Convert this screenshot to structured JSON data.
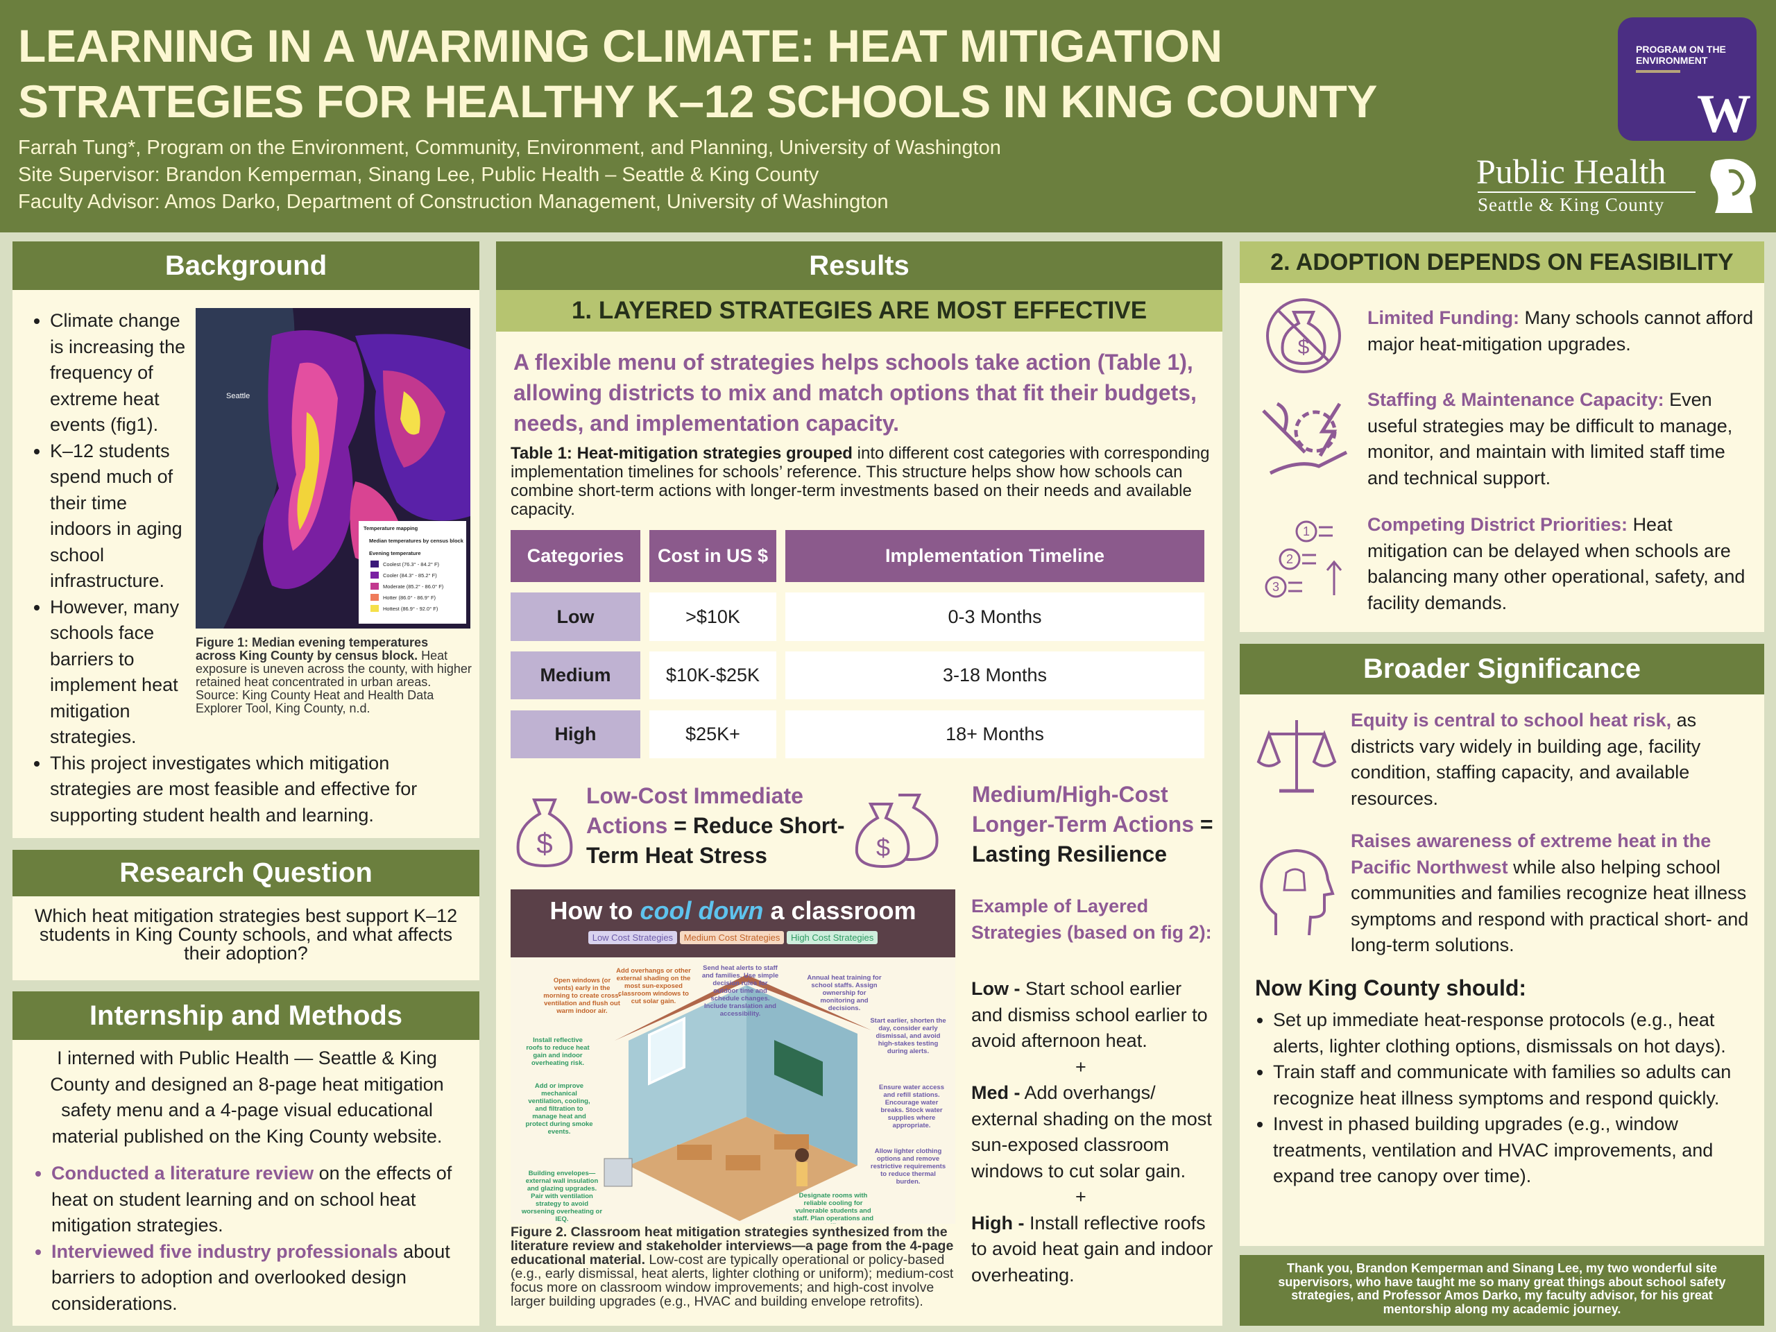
{
  "header": {
    "title_lines": [
      "LEARNING IN A WARMING CLIMATE: HEAT MITIGATION",
      "STRATEGIES FOR HEALTHY K–12 SCHOOLS IN KING COUNTY"
    ],
    "authors": [
      "Farrah Tung*, Program on the Environment, Community, Environment, and Planning, University of Washington",
      "Site Supervisor: Brandon Kemperman, Sinang Lee, Public Health – Seattle & King County",
      "Faculty Advisor: Amos Darko, Department of Construction Management, University of Washington"
    ],
    "program_logo": "PROGRAM ON THE ENVIRONMENT",
    "uw_logo": "W",
    "ph_logo_title": "Public Health",
    "ph_logo_sub": "Seattle & King County"
  },
  "background": {
    "heading": "Background",
    "bullets": [
      "Climate change is increasing the frequency of extreme heat events (fig1).",
      "K–12 students spend much of their time indoors in aging school infrastructure.",
      "However, many schools face barriers to implement heat mitigation strategies.",
      "This project investigates which mitigation strategies are most feasible and effective for supporting student health and learning."
    ],
    "map": {
      "city_label": "Seattle",
      "legend_title": "Temperature mapping",
      "legend_subtitle": "Median temperatures by census block",
      "legend_group": "Evening temperature",
      "legend_items": [
        "Coolest (76.3° - 84.2° F)",
        "Cooler (84.3° - 85.2° F)",
        "Moderate (85.2° - 86.0° F)",
        "Hotter (86.0° - 86.9° F)",
        "Hottest (86.9° - 92.0° F)"
      ]
    },
    "caption_bold": "Figure 1: Median evening temperatures across King County by census block.",
    "caption_text": "Heat exposure is uneven across the county, with higher retained heat concentrated in urban areas. Source: King County Heat and Health Data Explorer Tool, King County, n.d."
  },
  "research_question": {
    "heading": "Research Question",
    "text": "Which heat mitigation strategies best support K–12 students in King County schools, and what affects their adoption?"
  },
  "methods": {
    "heading": "Internship and Methods",
    "intro": "I interned with Public Health — Seattle & King County and designed an 8-page heat mitigation safety menu and a 4-page visual educational material published on the King County website.",
    "bullets": [
      {
        "highlight": "Conducted a literature review",
        "text": "on the effects of heat on student learning and on school heat mitigation strategies."
      },
      {
        "highlight": "Interviewed five industry professionals",
        "text": "about barriers to adoption and overlooked design considerations."
      }
    ]
  },
  "results": {
    "heading": "Results",
    "subheading": "1. LAYERED STRATEGIES ARE MOST EFFECTIVE",
    "lead": "A flexible menu of strategies helps schools take action (Table 1), allowing districts to mix and match options that fit their budgets, needs, and implementation capacity.",
    "table_caption_bold": "Table 1: Heat-mitigation strategies grouped",
    "table_caption_text": "into different cost categories with corresponding implementation timelines for schools’ reference. This structure helps show how schools can combine short-term actions with longer-term investments based on their needs and available capacity.",
    "table": {
      "headers": [
        "Categories",
        "Cost in US $",
        "Implementation Timeline"
      ],
      "rows": [
        [
          "Low",
          ">$10K",
          "0-3 Months"
        ],
        [
          "Medium",
          "$10K-$25K",
          "3-18 Months"
        ],
        [
          "High",
          "$25K+",
          "18+ Months"
        ]
      ]
    },
    "currency_symbol": "$",
    "low_cost": {
      "highlight": "Low-Cost Immediate Actions",
      "text": "= Reduce Short-Term Heat Stress"
    },
    "high_cost": {
      "highlight": "Medium/High-Cost Longer-Term Actions",
      "text": "= Lasting Resilience"
    },
    "figure": {
      "title_start": "How to",
      "title_accent": "cool down",
      "title_end": "a classroom",
      "tags": [
        "Low Cost Strategies",
        "Medium Cost Strategies",
        "High Cost Strategies"
      ],
      "annotations": [
        "Open windows (or vents) early in the morning to create cross-ventilation and flush out warm indoor air.",
        "Add overhangs or other external shading on the most sun-exposed classroom windows to cut solar gain.",
        "Send heat alerts to staff and families. Use simple decision rules for outdoor time and schedule changes. Include translation and accessibility.",
        "Annual heat training for school staffs. Assign ownership for monitoring and decisions.",
        "Install reflective roofs to reduce heat gain and indoor overheating risk.",
        "Start earlier, shorten the day, consider early dismissal, and avoid high-stakes testing during alerts.",
        "Add or improve mechanical ventilation, cooling, and filtration to manage heat and protect during smoke events.",
        "Ensure water access and refill stations. Encourage water breaks. Stock water supplies where appropriate.",
        "Allow lighter clothing options and remove restrictive requirements to reduce thermal burden.",
        "Building envelopes—external wall insulation and glazing upgrades. Pair with ventilation strategy to avoid worsening overheating or IEQ.",
        "Designate rooms with reliable cooling for vulnerable students and staff. Plan operations and staffing."
      ]
    },
    "figure_caption_bold": "Figure 2. Classroom heat mitigation strategies synthesized from the literature review and stakeholder interviews—a page from the 4-page educational material.",
    "figure_caption_text": "Low-cost are typically operational or policy-based (e.g., early dismissal, heat alerts, lighter clothing or uniform); medium-cost focus more on classroom window improvements; and high-cost involve larger building upgrades (e.g., HVAC and building envelope retrofits).",
    "example": {
      "heading": "Example of Layered Strategies (based on fig 2):",
      "items": [
        {
          "label": "Low -",
          "text": "Start school earlier and dismiss school earlier to avoid afternoon heat."
        },
        {
          "label": "Med -",
          "text": "Add overhangs/ external shading on the most sun-exposed classroom windows to cut solar gain."
        },
        {
          "label": "High -",
          "text": "Install reflective roofs to avoid heat gain and indoor overheating."
        }
      ],
      "separators": [
        "+",
        "+"
      ]
    }
  },
  "adoption": {
    "heading": "2. ADOPTION DEPENDS ON FEASIBILITY",
    "items": [
      {
        "highlight": "Limited Funding:",
        "text": "Many schools cannot afford major heat-mitigation upgrades."
      },
      {
        "highlight": "Staffing & Maintenance Capacity:",
        "text": "Even useful strategies may be difficult to manage, monitor, and maintain with limited staff time and technical support."
      },
      {
        "highlight": "Competing District Priorities:",
        "text": "Heat mitigation can be delayed when schools are balancing many other operational, safety, and facility demands."
      }
    ],
    "icon_numbers": [
      "1",
      "2",
      "3"
    ]
  },
  "broader": {
    "heading": "Broader Significance",
    "items": [
      {
        "highlight": "Equity is central to school heat risk,",
        "text": "as districts vary widely in building age, facility condition, staffing capacity, and available resources."
      },
      {
        "highlight": "Raises awareness of extreme heat in the Pacific Northwest",
        "text": "while also helping school communities and families recognize heat illness symptoms and respond with practical short- and long-term solutions."
      }
    ],
    "now_heading": "Now King County should:",
    "now_bullets": [
      "Set up immediate heat-response protocols (e.g., heat alerts, lighter clothing options, dismissals on hot days).",
      "Train staff and communicate with families so adults can recognize heat illness symptoms and respond quickly.",
      "Invest in phased building upgrades (e.g., window treatments, ventilation and HVAC improvements, and expand tree canopy over time)."
    ],
    "thanks": "Thank you, Brandon Kemperman and Sinang Lee, my two wonderful site supervisors, who have taught me so many great things about school safety strategies, and Professor Amos Darko, my faculty advisor, for his great mentorship along my academic journey."
  }
}
